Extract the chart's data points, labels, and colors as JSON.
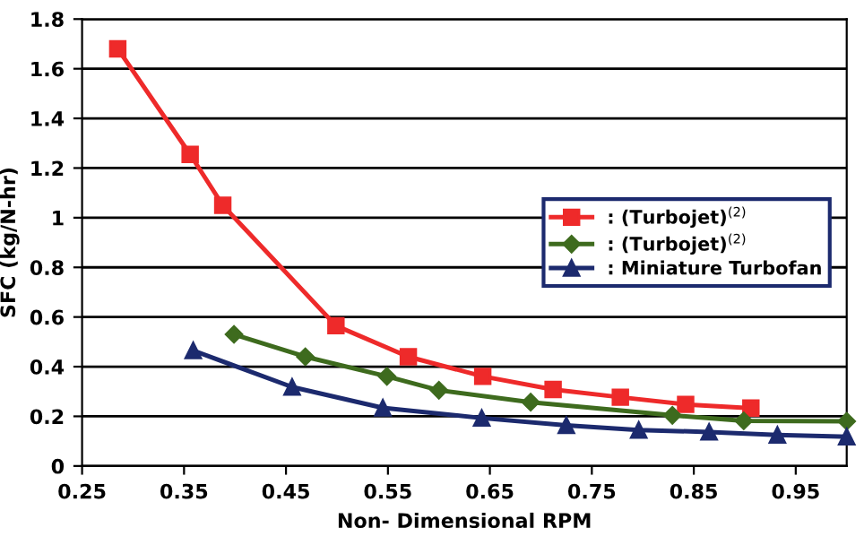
{
  "chart_data": {
    "type": "line",
    "xlabel": "Non- Dimensional RPM",
    "ylabel": "SFC (kg/N-hr)",
    "xlim": [
      0.25,
      1.0
    ],
    "xticks": [
      0.25,
      0.35,
      0.45,
      0.55,
      0.65,
      0.75,
      0.85,
      0.95
    ],
    "ylim": [
      0,
      1.8
    ],
    "yticks": [
      0,
      0.2,
      0.4,
      0.6,
      0.8,
      1,
      1.2,
      1.4,
      1.6,
      1.8
    ],
    "grid": "y",
    "legend": "right",
    "series": [
      {
        "name": ": (Turbojet)$^{(2)}$",
        "color": "#ee2a2a",
        "marker": "square",
        "x": [
          0.285,
          0.356,
          0.388,
          0.499,
          0.57,
          0.643,
          0.712,
          0.778,
          0.842,
          0.906
        ],
        "values": [
          1.68,
          1.255,
          1.05,
          0.565,
          0.44,
          0.361,
          0.308,
          0.277,
          0.248,
          0.233
        ]
      },
      {
        "name": ": (Turbojet)$^{(2)}$",
        "color": "#3e6b1e",
        "marker": "diamond",
        "x": [
          0.399,
          0.469,
          0.549,
          0.6,
          0.69,
          0.829,
          0.899,
          1.0
        ],
        "values": [
          0.53,
          0.44,
          0.361,
          0.305,
          0.257,
          0.204,
          0.182,
          0.18
        ]
      },
      {
        "name": ": Miniature Turbofan",
        "color": "#1c2a6e",
        "marker": "triangle",
        "x": [
          0.359,
          0.456,
          0.545,
          0.642,
          0.725,
          0.796,
          0.865,
          0.932,
          1.0
        ],
        "values": [
          0.465,
          0.318,
          0.234,
          0.193,
          0.164,
          0.145,
          0.137,
          0.125,
          0.118
        ]
      }
    ]
  }
}
